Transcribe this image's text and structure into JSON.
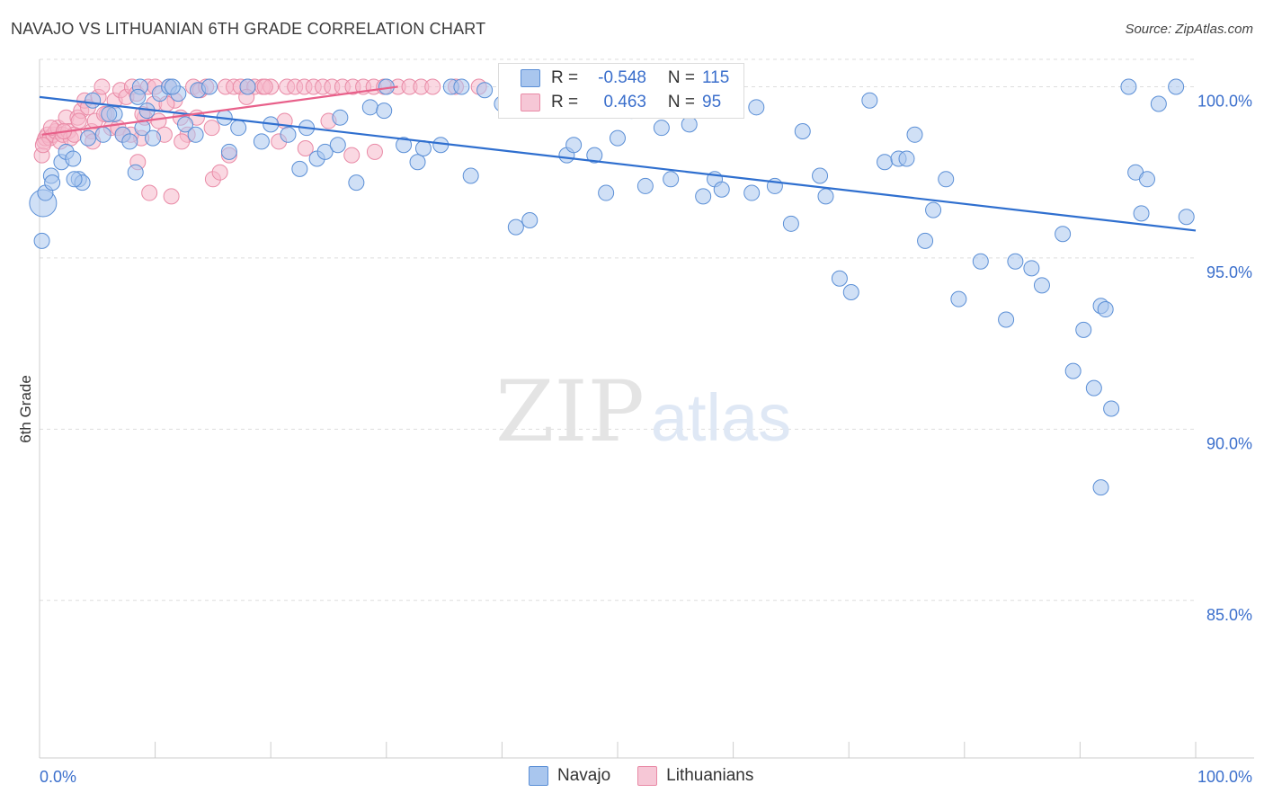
{
  "header": {
    "title": "NAVAJO VS LITHUANIAN 6TH GRADE CORRELATION CHART",
    "source": "Source: ZipAtlas.com"
  },
  "watermark": {
    "zip": "ZIP",
    "atlas": "atlas"
  },
  "colors": {
    "navajo_fill": "#a9c6ee",
    "navajo_stroke": "#5b8fd6",
    "navajo_line": "#2f6fcf",
    "lith_fill": "#f6b8cb",
    "lith_stroke": "#e98aa6",
    "lith_line": "#e8608a",
    "axis_label": "#3b6fcc",
    "grid": "#dddddd"
  },
  "legend": {
    "r_label": "R =",
    "n_label": "N =",
    "navajo": {
      "r": "-0.548",
      "n": "115"
    },
    "lithuanians": {
      "r": "0.463",
      "n": "95"
    }
  },
  "bottom_legend": {
    "navajo": "Navajo",
    "lithuanians": "Lithuanians"
  },
  "chart_data": {
    "type": "scatter",
    "title": "NAVAJO VS LITHUANIAN 6TH GRADE CORRELATION CHART",
    "xlabel": "",
    "ylabel": "6th Grade",
    "xlim": [
      0,
      100
    ],
    "ylim": [
      80.4,
      100.8
    ],
    "x_tick_labels": [
      "0.0%",
      "100.0%"
    ],
    "y_ticks": [
      85,
      90,
      95,
      100
    ],
    "y_tick_labels": [
      "85.0%",
      "90.0%",
      "95.0%",
      "100.0%"
    ],
    "grid": true,
    "series": [
      {
        "name": "Navajo",
        "r": -0.548,
        "n": 115,
        "trend": {
          "x": [
            0,
            100
          ],
          "y": [
            99.7,
            95.8
          ]
        },
        "x": [
          0.3,
          0.5,
          1.0,
          1.9,
          2.3,
          2.9,
          3.4,
          3.7,
          4.2,
          4.6,
          5.5,
          6.5,
          7.2,
          7.8,
          8.3,
          8.7,
          8.9,
          9.3,
          9.8,
          10.4,
          11.2,
          12.0,
          12.6,
          13.7,
          14.7,
          16.0,
          16.4,
          17.2,
          19.2,
          21.5,
          22.5,
          23.1,
          24.0,
          24.7,
          25.8,
          27.4,
          28.6,
          29.8,
          31.5,
          32.7,
          33.2,
          34.7,
          35.6,
          37.3,
          38.5,
          41.2,
          42.4,
          44.4,
          45.6,
          46.2,
          49.0,
          50.0,
          51.2,
          52.4,
          53.8,
          54.6,
          55.1,
          56.2,
          57.4,
          58.4,
          59.0,
          61.6,
          63.6,
          65.0,
          67.5,
          69.2,
          70.2,
          71.8,
          73.1,
          74.3,
          75.0,
          75.7,
          76.6,
          77.3,
          78.4,
          79.5,
          81.4,
          83.6,
          84.4,
          85.8,
          86.7,
          88.5,
          89.4,
          90.3,
          91.2,
          91.8,
          91.8,
          92.2,
          92.7,
          94.2,
          94.8,
          95.3,
          95.8,
          96.8,
          98.3,
          99.2,
          0.2,
          1.1,
          3.0,
          6.0,
          8.5,
          11.5,
          13.5,
          18.0,
          20.0,
          26.0,
          30.0,
          36.5,
          40.0,
          43.0,
          48.0,
          57.0,
          62.0,
          66.0,
          68.0
        ],
        "y": [
          96.6,
          96.9,
          97.4,
          97.8,
          98.1,
          97.9,
          97.3,
          97.2,
          98.5,
          99.6,
          98.6,
          99.2,
          98.6,
          98.4,
          97.5,
          100.0,
          98.8,
          99.3,
          98.5,
          99.8,
          100.0,
          99.8,
          98.9,
          99.9,
          100.0,
          99.1,
          98.1,
          98.8,
          98.4,
          98.6,
          97.6,
          98.8,
          97.9,
          98.1,
          98.3,
          97.2,
          99.4,
          99.3,
          98.3,
          97.8,
          98.2,
          98.3,
          100.0,
          97.4,
          99.9,
          95.9,
          96.1,
          99.9,
          98.0,
          98.3,
          96.9,
          98.5,
          99.3,
          97.1,
          98.8,
          97.3,
          100.0,
          98.9,
          96.8,
          97.3,
          97.0,
          96.9,
          97.1,
          96.0,
          97.4,
          94.4,
          94.0,
          99.6,
          97.8,
          97.9,
          97.9,
          98.6,
          95.5,
          96.4,
          97.3,
          93.8,
          94.9,
          93.2,
          94.9,
          94.7,
          94.2,
          95.7,
          91.7,
          92.9,
          91.2,
          88.3,
          93.6,
          93.5,
          90.6,
          100.0,
          97.5,
          96.3,
          97.3,
          99.5,
          100.0,
          96.2,
          95.5,
          97.2,
          97.3,
          99.2,
          99.7,
          100.0,
          98.6,
          100.0,
          98.9,
          99.1,
          100.0,
          100.0,
          99.5,
          99.7,
          98.0,
          99.4,
          99.4,
          98.7,
          96.8
        ]
      },
      {
        "name": "Lithuanians",
        "r": 0.463,
        "n": 95,
        "trend": {
          "x": [
            0.2,
            31.0
          ],
          "y": [
            98.6,
            100.0
          ]
        },
        "x": [
          0.2,
          0.4,
          0.5,
          0.7,
          0.9,
          1.2,
          1.4,
          1.6,
          1.8,
          2.0,
          2.3,
          2.5,
          2.7,
          3.0,
          3.3,
          3.6,
          3.9,
          4.2,
          4.5,
          4.8,
          5.1,
          5.4,
          5.8,
          6.2,
          6.5,
          7.0,
          7.5,
          8.0,
          8.4,
          8.8,
          9.1,
          9.4,
          9.9,
          10.3,
          10.8,
          11.2,
          11.7,
          12.2,
          12.8,
          13.3,
          13.9,
          14.4,
          15.0,
          15.6,
          16.1,
          16.8,
          17.4,
          18.0,
          18.6,
          19.3,
          20.0,
          20.7,
          21.4,
          22.1,
          22.9,
          23.7,
          24.5,
          25.3,
          26.2,
          27.1,
          28.0,
          28.9,
          29.8,
          31.0,
          32.0,
          33.0,
          34.0,
          36.0,
          38.0,
          0.3,
          1.0,
          2.1,
          3.4,
          4.6,
          5.6,
          6.8,
          7.9,
          8.9,
          10.0,
          11.0,
          12.3,
          13.6,
          14.9,
          16.4,
          17.9,
          19.5,
          21.2,
          23.0,
          25.0,
          27.0,
          29.0,
          7.2,
          8.5,
          9.5,
          11.4
        ],
        "y": [
          98.0,
          98.4,
          98.5,
          98.6,
          98.5,
          98.6,
          98.7,
          98.8,
          98.4,
          98.6,
          99.1,
          98.7,
          98.5,
          98.6,
          99.1,
          99.3,
          99.6,
          99.4,
          98.7,
          99.0,
          99.7,
          100.0,
          99.2,
          98.8,
          99.6,
          99.9,
          99.7,
          100.0,
          99.8,
          98.5,
          99.1,
          100.0,
          99.5,
          99.0,
          98.6,
          100.0,
          99.6,
          99.1,
          98.6,
          100.0,
          99.9,
          100.0,
          97.3,
          97.5,
          100.0,
          100.0,
          100.0,
          100.0,
          100.0,
          100.0,
          100.0,
          98.4,
          100.0,
          100.0,
          100.0,
          100.0,
          100.0,
          100.0,
          100.0,
          100.0,
          100.0,
          100.0,
          100.0,
          100.0,
          100.0,
          100.0,
          100.0,
          100.0,
          100.0,
          98.3,
          98.8,
          98.7,
          99.0,
          98.4,
          99.2,
          98.8,
          98.6,
          99.2,
          100.0,
          99.5,
          98.4,
          99.1,
          98.8,
          98.0,
          99.7,
          100.0,
          99.0,
          98.2,
          99.0,
          98.0,
          98.1,
          98.6,
          97.8,
          96.9,
          96.8
        ]
      }
    ]
  }
}
